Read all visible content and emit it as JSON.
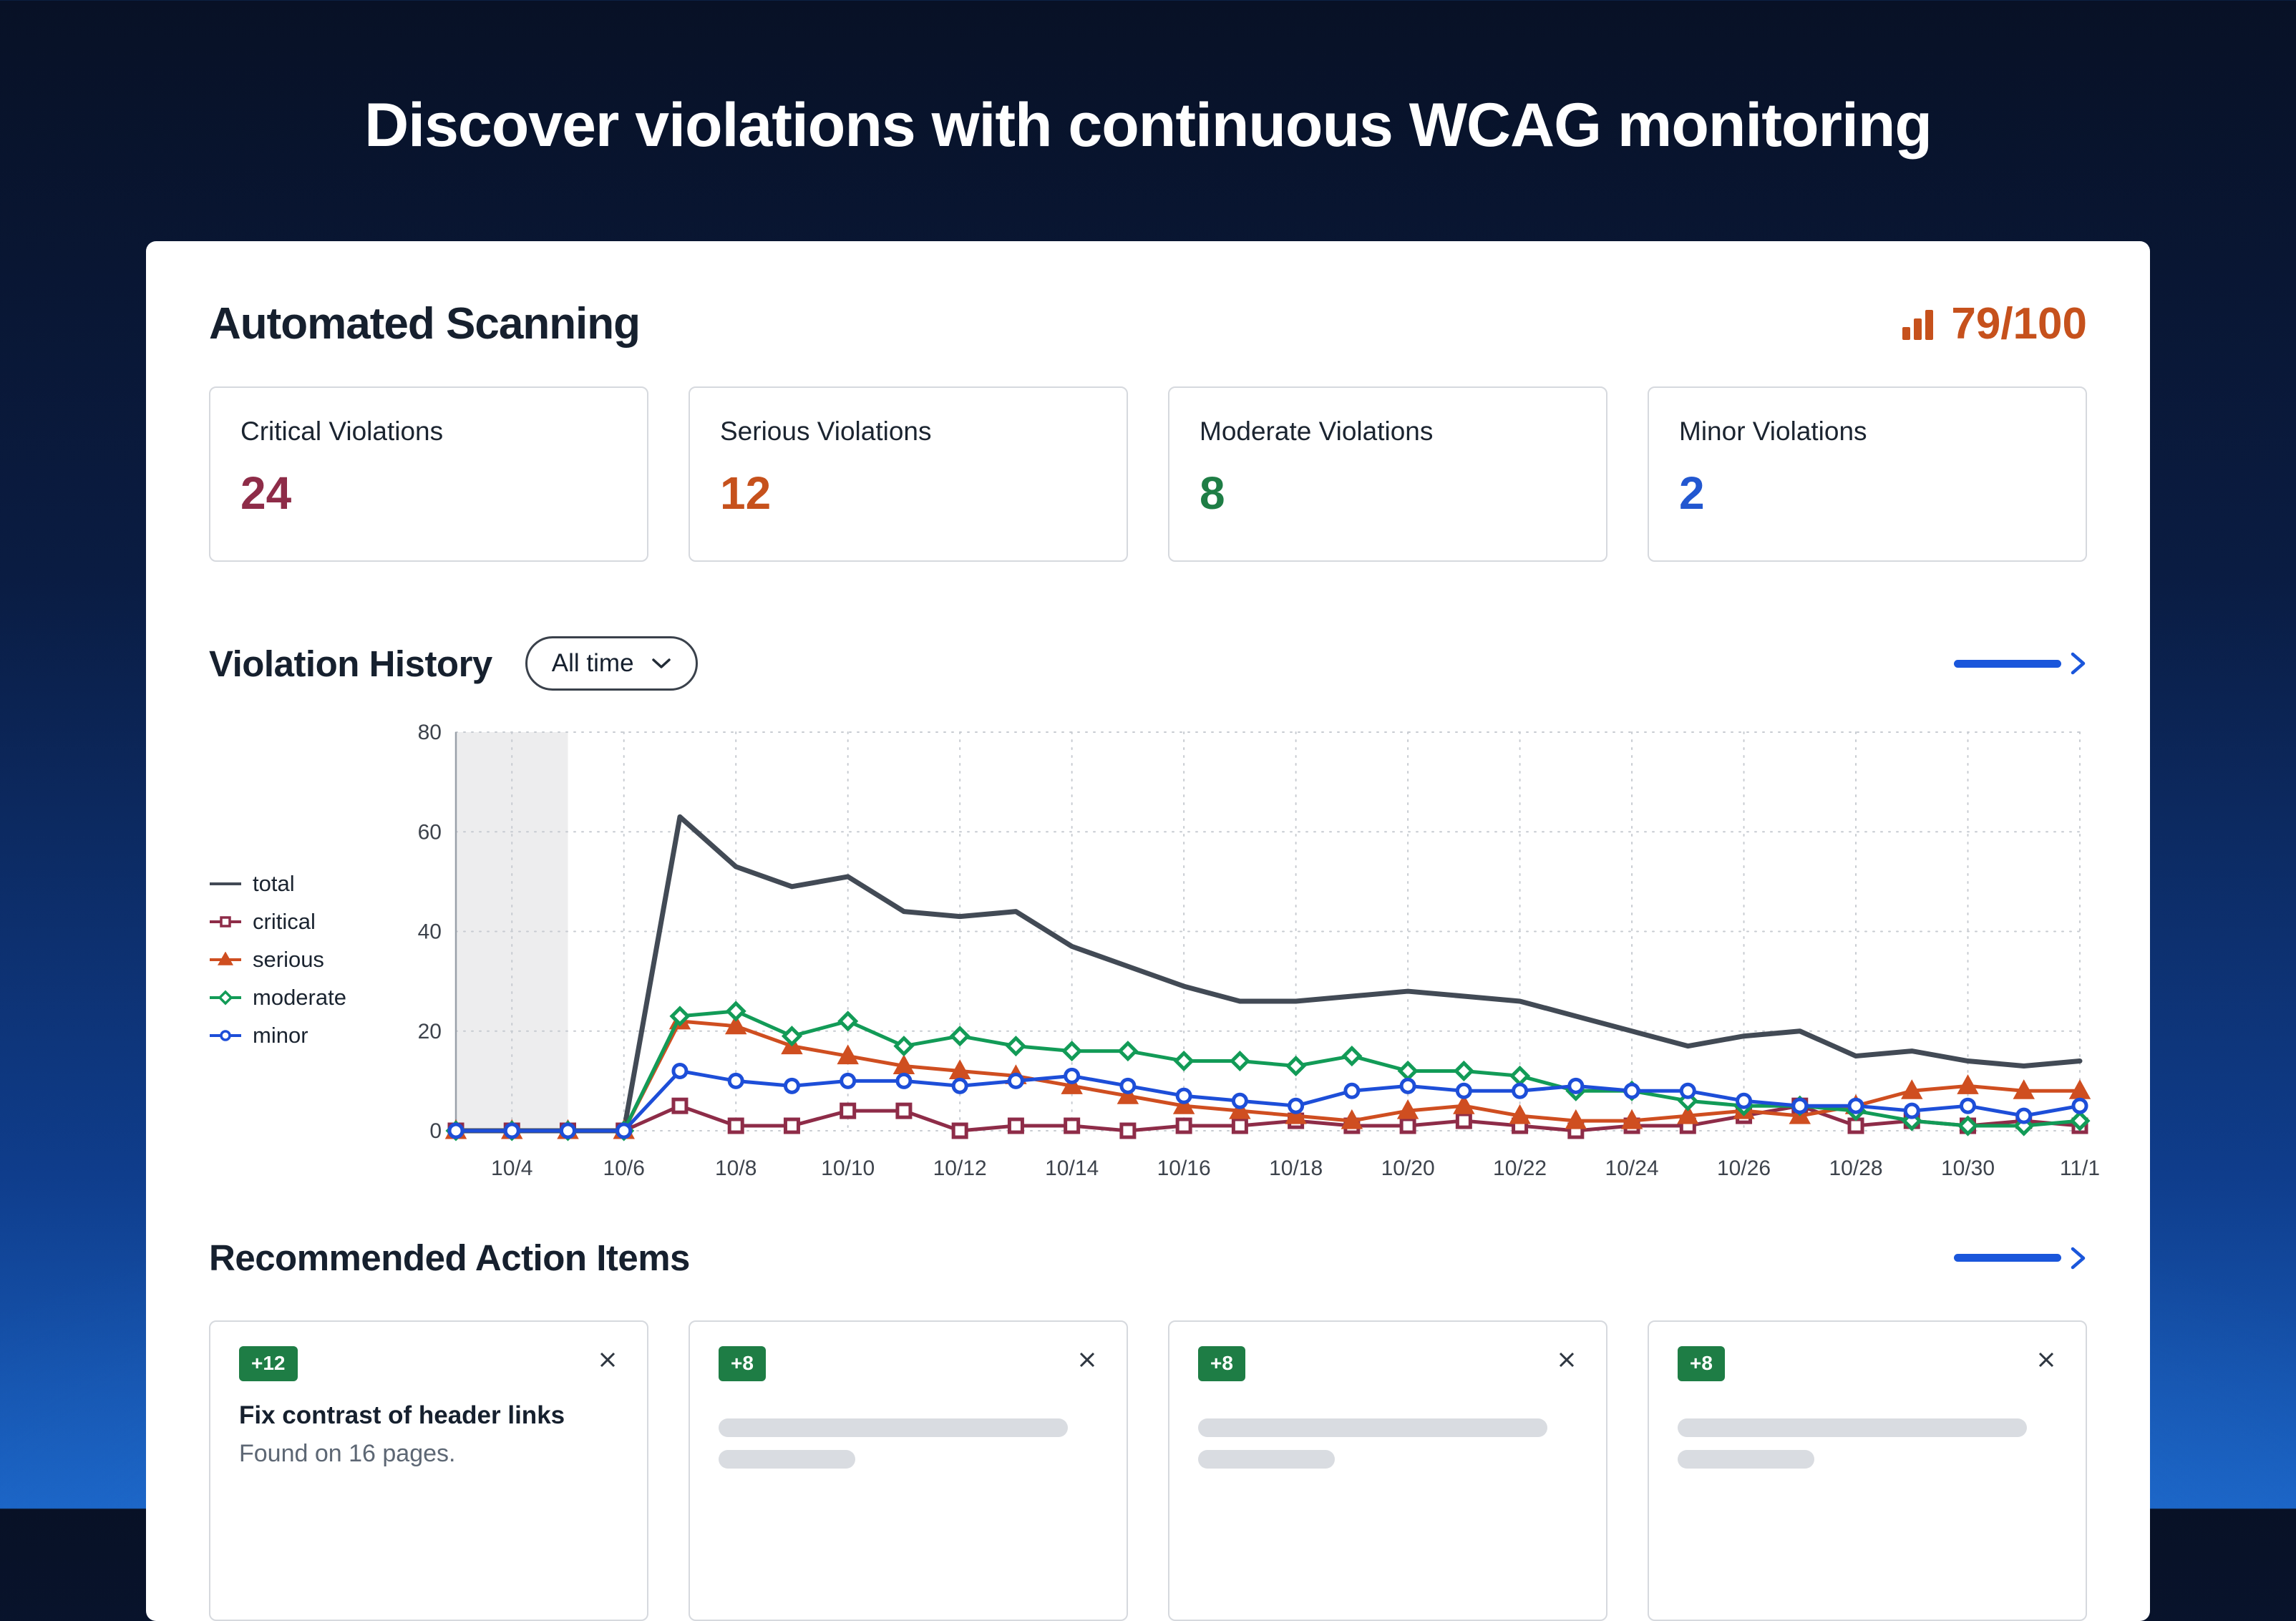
{
  "page": {
    "title": "Discover violations with continuous WCAG monitoring"
  },
  "scanning": {
    "title": "Automated Scanning",
    "score": "79/100",
    "score_color": "#c6511c",
    "stats": [
      {
        "label": "Critical Violations",
        "value": "24",
        "color": "#8e2c48"
      },
      {
        "label": "Serious Violations",
        "value": "12",
        "color": "#c6511c"
      },
      {
        "label": "Moderate Violations",
        "value": "8",
        "color": "#1e7d45"
      },
      {
        "label": "Minor Violations",
        "value": "2",
        "color": "#2257d0"
      }
    ]
  },
  "history": {
    "title": "Violation History",
    "range_selector": {
      "value": "All time"
    },
    "link_color": "#1a56db"
  },
  "chart_data": {
    "type": "line",
    "title": "Violation History",
    "x": [
      "10/3",
      "10/4",
      "10/5",
      "10/6",
      "10/7",
      "10/8",
      "10/9",
      "10/10",
      "10/11",
      "10/12",
      "10/13",
      "10/14",
      "10/15",
      "10/16",
      "10/17",
      "10/18",
      "10/19",
      "10/20",
      "10/21",
      "10/22",
      "10/23",
      "10/24",
      "10/25",
      "10/26",
      "10/27",
      "10/28",
      "10/29",
      "10/30",
      "10/31",
      "11/1"
    ],
    "x_tick_start": 1,
    "x_tick_every": 2,
    "ylim": [
      0,
      80
    ],
    "yticks": [
      0,
      20,
      40,
      60,
      80
    ],
    "grid": true,
    "legend_position": "left",
    "highlight_band": {
      "from": "10/3",
      "to": "10/5",
      "color": "#ededee"
    },
    "series": [
      {
        "name": "total",
        "color": "#424a55",
        "marker": "none",
        "values": [
          0,
          0,
          0,
          0,
          63,
          53,
          49,
          51,
          44,
          43,
          44,
          37,
          33,
          29,
          26,
          26,
          27,
          28,
          27,
          26,
          23,
          20,
          17,
          19,
          20,
          15,
          16,
          14,
          13,
          14
        ]
      },
      {
        "name": "critical",
        "color": "#8e2c48",
        "marker": "square",
        "values": [
          0,
          0,
          0,
          0,
          5,
          1,
          1,
          4,
          4,
          0,
          1,
          1,
          0,
          1,
          1,
          2,
          1,
          1,
          2,
          1,
          0,
          1,
          1,
          3,
          5,
          1,
          2,
          1,
          2,
          1
        ]
      },
      {
        "name": "serious",
        "color": "#cf4e20",
        "marker": "triangle",
        "values": [
          0,
          0,
          0,
          0,
          22,
          21,
          17,
          15,
          13,
          12,
          11,
          9,
          7,
          5,
          4,
          3,
          2,
          4,
          5,
          3,
          2,
          2,
          3,
          4,
          3,
          5,
          8,
          9,
          8,
          8
        ]
      },
      {
        "name": "moderate",
        "color": "#129b57",
        "marker": "diamond",
        "values": [
          0,
          0,
          0,
          0,
          23,
          24,
          19,
          22,
          17,
          19,
          17,
          16,
          16,
          14,
          14,
          13,
          15,
          12,
          12,
          11,
          8,
          8,
          6,
          5,
          5,
          4,
          2,
          1,
          1,
          2
        ]
      },
      {
        "name": "minor",
        "color": "#1d4ed8",
        "marker": "circle",
        "values": [
          0,
          0,
          0,
          0,
          12,
          10,
          9,
          10,
          10,
          9,
          10,
          11,
          9,
          7,
          6,
          5,
          8,
          9,
          8,
          8,
          9,
          8,
          8,
          6,
          5,
          5,
          4,
          5,
          3,
          5
        ]
      }
    ]
  },
  "actions": {
    "title": "Recommended Action Items",
    "link_color": "#1a56db",
    "badge_color": "#1e7d45",
    "cards": [
      {
        "badge": "+12",
        "title": "Fix contrast of header links",
        "subtitle": "Found on 16 pages.",
        "placeholder": false
      },
      {
        "badge": "+8",
        "placeholder": true
      },
      {
        "badge": "+8",
        "placeholder": true
      },
      {
        "badge": "+8",
        "placeholder": true
      }
    ]
  }
}
